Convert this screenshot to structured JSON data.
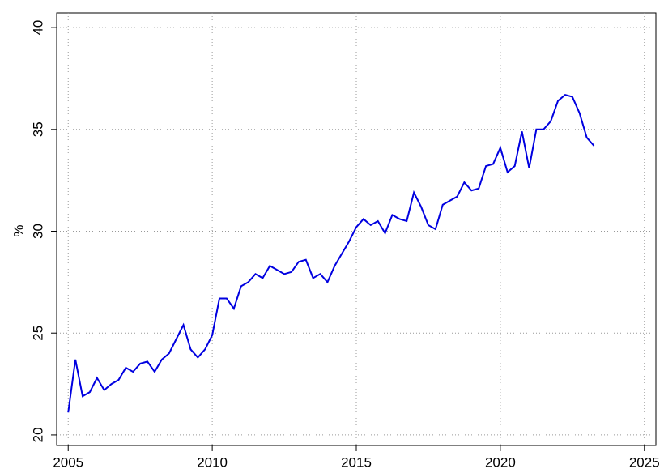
{
  "chart_data": {
    "type": "line",
    "y_label": "%",
    "x": [
      2005.0,
      2005.25,
      2005.5,
      2005.75,
      2006.0,
      2006.25,
      2006.5,
      2006.75,
      2007.0,
      2007.25,
      2007.5,
      2007.75,
      2008.0,
      2008.25,
      2008.5,
      2008.75,
      2009.0,
      2009.25,
      2009.5,
      2009.75,
      2010.0,
      2010.25,
      2010.5,
      2010.75,
      2011.0,
      2011.25,
      2011.5,
      2011.75,
      2012.0,
      2012.25,
      2012.5,
      2012.75,
      2013.0,
      2013.25,
      2013.5,
      2013.75,
      2014.0,
      2014.25,
      2014.5,
      2014.75,
      2015.0,
      2015.25,
      2015.5,
      2015.75,
      2016.0,
      2016.25,
      2016.5,
      2016.75,
      2017.0,
      2017.25,
      2017.5,
      2017.75,
      2018.0,
      2018.25,
      2018.5,
      2018.75,
      2019.0,
      2019.25,
      2019.5,
      2019.75,
      2020.0,
      2020.25,
      2020.5,
      2020.75,
      2021.0,
      2021.25,
      2021.5,
      2021.75,
      2022.0,
      2022.25,
      2022.5,
      2022.75,
      2023.0,
      2023.25
    ],
    "series": [
      {
        "color": "#0000e0",
        "values": [
          21.1,
          23.7,
          21.9,
          22.1,
          22.8,
          22.2,
          22.5,
          22.7,
          23.3,
          23.1,
          23.5,
          23.6,
          23.1,
          23.7,
          24.0,
          24.7,
          25.4,
          24.2,
          23.8,
          24.2,
          24.9,
          26.7,
          26.7,
          26.2,
          27.3,
          27.5,
          27.9,
          27.7,
          28.3,
          28.1,
          27.9,
          28.0,
          28.5,
          28.6,
          27.7,
          27.9,
          27.5,
          28.3,
          28.9,
          29.5,
          30.2,
          30.6,
          30.3,
          30.5,
          29.9,
          30.8,
          30.6,
          30.5,
          31.9,
          31.2,
          30.3,
          30.1,
          31.3,
          31.5,
          31.7,
          32.4,
          32.0,
          32.1,
          33.2,
          33.3,
          34.1,
          32.9,
          33.2,
          34.9,
          33.1,
          35.0,
          35.0,
          35.4,
          36.4,
          36.7,
          36.6,
          35.8,
          34.6,
          34.2
        ]
      }
    ],
    "xlim": [
      2004.6,
      2025.4
    ],
    "ylim": [
      19.48,
      40.72
    ],
    "xticks": [
      2005,
      2010,
      2015,
      2020,
      2025
    ],
    "yticks": [
      20,
      25,
      30,
      35,
      40
    ],
    "grid": true
  }
}
